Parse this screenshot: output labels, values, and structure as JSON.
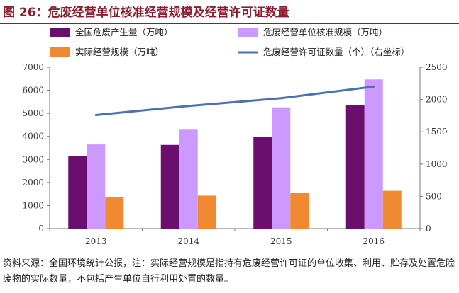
{
  "figure": {
    "title": "图 26：危废经营单位核准经营规模及经营许可证数量",
    "source": "资料来源：全国环境统计公报，注：实际经营规模是指持有危废经营许可证的单位收集、利用、贮存及处置危险废物的实际数量，不包括产生单位自行利用处置的数量。"
  },
  "chart_data": {
    "type": "bar",
    "categories": [
      "2013",
      "2014",
      "2015",
      "2016"
    ],
    "series": [
      {
        "name": "全国危废产生量（万吨）",
        "type": "bar",
        "axis": "left",
        "color": "#6a0f6e",
        "values": [
          3160,
          3630,
          3980,
          5350
        ]
      },
      {
        "name": "危废经营单位核准规模（万吨）",
        "type": "bar",
        "axis": "left",
        "color": "#cc99ff",
        "values": [
          3650,
          4320,
          5260,
          6470
        ]
      },
      {
        "name": "实际经营规模（万吨）",
        "type": "bar",
        "axis": "left",
        "color": "#f08a32",
        "values": [
          1350,
          1430,
          1540,
          1640
        ]
      },
      {
        "name": "危废经营许可证数量（个）（右坐标）",
        "type": "line",
        "axis": "right",
        "color": "#4a72b0",
        "values": [
          1760,
          1900,
          2020,
          2200
        ]
      }
    ],
    "ylim": [
      0,
      7000
    ],
    "yticks": [
      "0",
      "1000",
      "2000",
      "3000",
      "4000",
      "5000",
      "6000",
      "7000"
    ],
    "y2lim": [
      0,
      2500
    ],
    "y2ticks": [
      "0",
      "500",
      "1000",
      "1500",
      "2000",
      "2500"
    ],
    "grid": false,
    "legend_position": "top"
  }
}
